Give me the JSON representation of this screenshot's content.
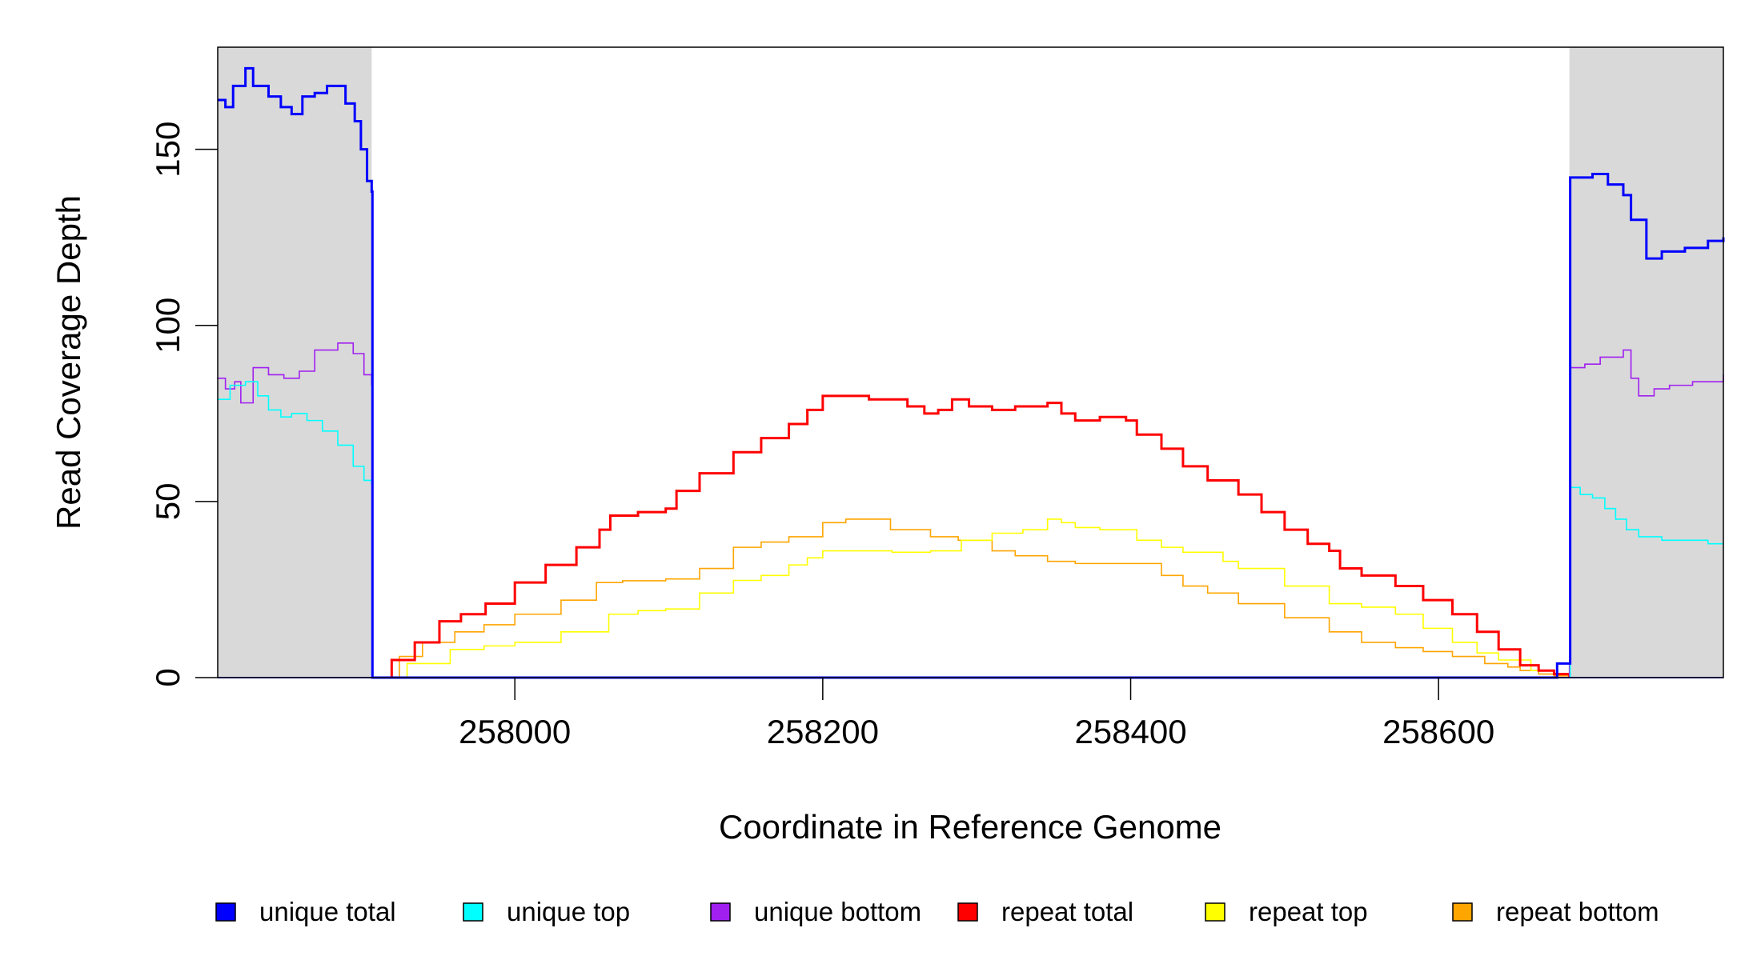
{
  "chart_data": {
    "type": "line",
    "title": "",
    "xlabel": "Coordinate in Reference Genome",
    "ylabel": "Read Coverage Depth",
    "xlim": [
      257807,
      258785
    ],
    "ylim": [
      0,
      179
    ],
    "xticks": [
      258000,
      258200,
      258400,
      258600
    ],
    "xtick_labels": [
      "258000",
      "258200",
      "258400",
      "258600"
    ],
    "yticks": [
      0,
      50,
      100,
      150
    ],
    "ytick_labels": [
      "0",
      "50",
      "100",
      "150"
    ],
    "shaded_regions": [
      [
        257807,
        257907
      ],
      [
        258685,
        258785
      ]
    ],
    "shade_color": "#d9d9d9",
    "legend_placement": "bottom",
    "series": [
      {
        "name": "unique total",
        "color": "#0000ff",
        "width": 3,
        "x": [
          257807,
          257812,
          257817,
          257825,
          257830,
          257840,
          257848,
          257855,
          257862,
          257870,
          257878,
          257890,
          257896,
          257900,
          257904,
          257907,
          257907.5,
          258677,
          258677,
          258685,
          258685.5,
          258700,
          258710,
          258720,
          258725,
          258735,
          258745,
          258760,
          258775,
          258785
        ],
        "y": [
          164,
          162,
          168,
          173,
          168,
          165,
          162,
          160,
          165,
          166,
          168,
          163,
          158,
          150,
          141,
          138,
          0,
          0,
          4,
          4,
          142,
          143,
          140,
          137,
          130,
          119,
          121,
          122,
          124,
          125
        ]
      },
      {
        "name": "unique top",
        "color": "#00ffff",
        "width": 1.6,
        "x": [
          257807,
          257815,
          257825,
          257833,
          257840,
          257848,
          257855,
          257865,
          257875,
          257885,
          257895,
          257902,
          257907,
          257907.5,
          258685,
          258685.5,
          258692,
          258700,
          258708,
          258715,
          258722,
          258730,
          258745,
          258760,
          258775,
          258785
        ],
        "y": [
          79,
          83,
          84,
          80,
          76,
          74,
          75,
          73,
          70,
          66,
          60,
          56,
          55,
          0,
          0,
          54,
          52,
          51,
          48,
          45,
          42,
          40,
          39,
          39,
          38,
          38
        ]
      },
      {
        "name": "unique bottom",
        "color": "#a020f0",
        "width": 1.6,
        "x": [
          257807,
          257812,
          257818,
          257822,
          257830,
          257840,
          257850,
          257860,
          257870,
          257885,
          257895,
          257902,
          257907,
          257907.5,
          258677,
          258685,
          258685.5,
          258695,
          258705,
          258720,
          258725,
          258730,
          258740,
          258750,
          258765,
          258785
        ],
        "y": [
          85,
          82,
          84,
          78,
          88,
          86,
          85,
          87,
          93,
          95,
          92,
          86,
          83,
          0,
          0,
          4,
          88,
          89,
          91,
          93,
          85,
          80,
          82,
          83,
          84,
          86
        ]
      },
      {
        "name": "repeat total",
        "color": "#ff0000",
        "width": 3,
        "x": [
          257907,
          257920,
          257935,
          257951,
          257965,
          257981,
          258000,
          258020,
          258040,
          258055,
          258062,
          258080,
          258098,
          258105,
          258120,
          258142,
          258160,
          258178,
          258190,
          258200,
          258215,
          258230,
          258244,
          258255,
          258266,
          258275,
          258284,
          258295,
          258310,
          258325,
          258335,
          258346,
          258355,
          258364,
          258380,
          258397,
          258404,
          258420,
          258434,
          258450,
          258470,
          258485,
          258500,
          258515,
          258529,
          258536,
          258550,
          258572,
          258590,
          258609,
          258625,
          258639,
          258653,
          258665,
          258675,
          258685
        ],
        "y": [
          0,
          5,
          10,
          16,
          18,
          21,
          27,
          32,
          37,
          42,
          46,
          47,
          48,
          53,
          58,
          64,
          68,
          72,
          76,
          80,
          80,
          79,
          79,
          77,
          75,
          76,
          79,
          77,
          76,
          77,
          77,
          78,
          75,
          73,
          74,
          73,
          69,
          65,
          60,
          56,
          52,
          47,
          42,
          38,
          36,
          31,
          29,
          26,
          22,
          18,
          13,
          8,
          3.5,
          2,
          1,
          0
        ]
      },
      {
        "name": "repeat top",
        "color": "#ffff00",
        "width": 1.6,
        "x": [
          257907,
          257930,
          257958,
          257980,
          258000,
          258030,
          258061,
          258080,
          258098,
          258120,
          258142,
          258160,
          258178,
          258190,
          258200,
          258220,
          258245,
          258270,
          258290,
          258310,
          258330,
          258346,
          258355,
          258364,
          258380,
          258404,
          258420,
          258434,
          258460,
          258470,
          258500,
          258529,
          258550,
          258572,
          258590,
          258609,
          258625,
          258639,
          258660,
          258675,
          258685
        ],
        "y": [
          0,
          4,
          8,
          9,
          10,
          13,
          18,
          19,
          19.5,
          24,
          27.6,
          29,
          32,
          34,
          36,
          36,
          35.6,
          36,
          39,
          41,
          42,
          45,
          44,
          42.6,
          42,
          39,
          37,
          35.6,
          33,
          31,
          26,
          21,
          20,
          18,
          14,
          10,
          7,
          5,
          2,
          1,
          0
        ]
      },
      {
        "name": "repeat bottom",
        "color": "#ffa500",
        "width": 1.6,
        "x": [
          257907,
          257925,
          257940,
          257961,
          257980,
          258000,
          258030,
          258053,
          258070,
          258098,
          258120,
          258142,
          258160,
          258178,
          258200,
          258215,
          258244,
          258270,
          258288,
          258310,
          258325,
          258346,
          258364,
          258397,
          258420,
          258434,
          258450,
          258470,
          258500,
          258529,
          258550,
          258572,
          258590,
          258609,
          258630,
          258645,
          258653,
          258665,
          258675,
          258685
        ],
        "y": [
          0,
          6,
          10,
          13,
          15,
          18,
          22,
          27,
          27.5,
          28,
          31,
          37,
          38.5,
          40,
          44,
          45,
          42,
          40,
          39,
          36,
          34.6,
          33,
          32.4,
          32.4,
          29,
          26,
          24,
          21,
          17,
          13,
          10,
          8.5,
          7.4,
          6,
          4,
          3,
          2,
          1,
          0.5,
          0
        ]
      }
    ]
  },
  "legend": [
    {
      "label": "unique total",
      "color": "#0000ff"
    },
    {
      "label": "unique top",
      "color": "#00ffff"
    },
    {
      "label": "unique bottom",
      "color": "#a020f0"
    },
    {
      "label": "repeat total",
      "color": "#ff0000"
    },
    {
      "label": "repeat top",
      "color": "#ffff00"
    },
    {
      "label": "repeat bottom",
      "color": "#ffa500"
    }
  ]
}
